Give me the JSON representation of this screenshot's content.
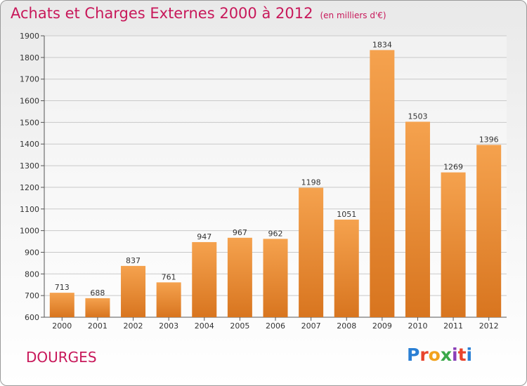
{
  "title": "Achats et Charges Externes 2000 à 2012",
  "unit_note": "(en milliers d'€)",
  "commune": "DOURGES",
  "logo": {
    "letters": [
      "P",
      "r",
      "o",
      "x",
      "i",
      "t",
      "i"
    ],
    "colors": [
      "#2a7fd4",
      "#e8442c",
      "#f2a21e",
      "#3aa84a",
      "#8a3fb8",
      "#e8442c",
      "#2a7fd4"
    ]
  },
  "colors": {
    "bar_light": "#f5a24e",
    "bar_dark": "#d8751f",
    "title": "#c8185a"
  },
  "chart_data": {
    "type": "bar",
    "title": "Achats et Charges Externes 2000 à 2012",
    "xlabel": "",
    "ylabel": "",
    "categories": [
      "2000",
      "2001",
      "2002",
      "2003",
      "2004",
      "2005",
      "2006",
      "2007",
      "2008",
      "2009",
      "2010",
      "2011",
      "2012"
    ],
    "values": [
      713,
      688,
      837,
      761,
      947,
      967,
      962,
      1198,
      1051,
      1834,
      1503,
      1269,
      1396
    ],
    "ylim": [
      600,
      1900
    ],
    "yticks": [
      600,
      700,
      800,
      900,
      1000,
      1100,
      1200,
      1300,
      1400,
      1500,
      1600,
      1700,
      1800,
      1900
    ],
    "grid": true,
    "data_labels": true
  }
}
